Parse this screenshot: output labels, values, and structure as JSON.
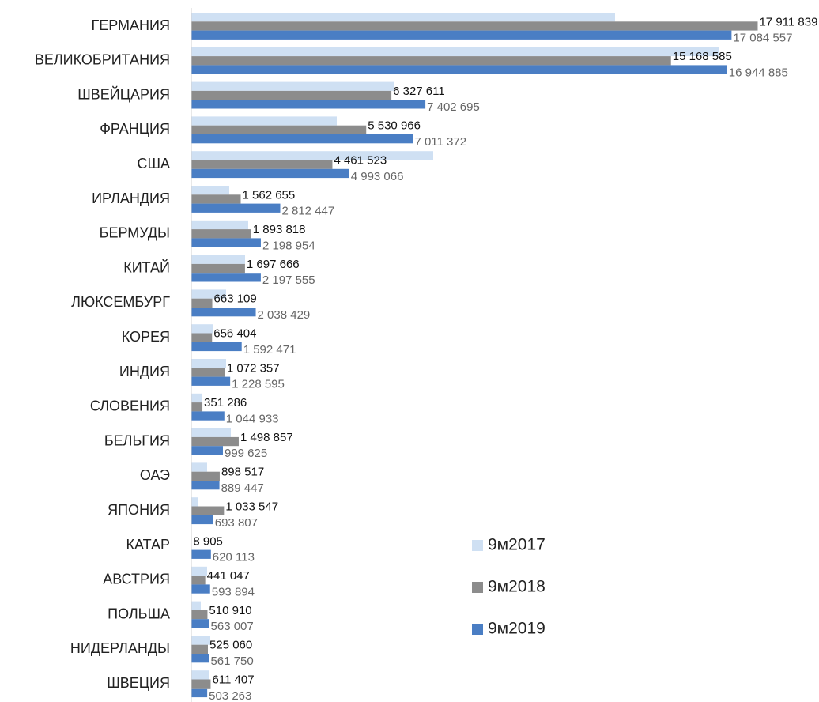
{
  "chart_data": {
    "type": "hbar",
    "categories": [
      "ГЕРМАНИЯ",
      "ВЕЛИКОБРИТАНИЯ",
      "ШВЕЙЦАРИЯ",
      "ФРАНЦИЯ",
      "США",
      "ИРЛАНДИЯ",
      "БЕРМУДЫ",
      "КИТАЙ",
      "ЛЮКСЕМБУРГ",
      "КОРЕЯ",
      "ИНДИЯ",
      "СЛОВЕНИЯ",
      "БЕЛЬГИЯ",
      "ОАЭ",
      "ЯПОНИЯ",
      "КАТАР",
      "АВСТРИЯ",
      "ПОЛЬША",
      "НИДЕРЛАНДЫ",
      "ШВЕЦИЯ"
    ],
    "xlim": [
      0,
      18000000
    ],
    "series": [
      {
        "name": "9м2017",
        "color": "#cfe0f3",
        "values": [
          13400000,
          16700000,
          6400000,
          4600000,
          7650000,
          1200000,
          1800000,
          1700000,
          1100000,
          700000,
          1100000,
          350000,
          1250000,
          500000,
          200000,
          0,
          500000,
          300000,
          600000,
          570000
        ]
      },
      {
        "name": "9м2018",
        "color": "#8c8c8c",
        "values": [
          17911839,
          15168585,
          6327611,
          5530966,
          4461523,
          1562655,
          1893818,
          1697666,
          663109,
          656404,
          1072357,
          351286,
          1498857,
          898517,
          1033547,
          8905,
          441047,
          510910,
          525060,
          611407
        ],
        "value_labels": [
          "17 911 839",
          "15 168 585",
          "6 327 611",
          "5 530 966",
          "4 461 523",
          "1 562 655",
          "1 893 818",
          "1 697 666",
          "663 109",
          "656 404",
          "1 072 357",
          "351 286",
          "1 498 857",
          "898 517",
          "1 033 547",
          "8 905",
          "441 047",
          "510 910",
          "525 060",
          "611 407"
        ]
      },
      {
        "name": "9м2019",
        "color": "#4a7ec4",
        "values": [
          17084557,
          16944885,
          7402695,
          7011372,
          4993066,
          2812447,
          2198954,
          2197555,
          2038429,
          1592471,
          1228595,
          1044933,
          999625,
          889447,
          693807,
          620113,
          593894,
          563007,
          561750,
          503263
        ],
        "value_labels": [
          "17 084 557",
          "16 944 885",
          "7 402 695",
          "7 011 372",
          "4 993 066",
          "2 812 447",
          "2 198 954",
          "2 197 555",
          "2 038 429",
          "1 592 471",
          "1 228 595",
          "1 044 933",
          "999 625",
          "889 447",
          "693 807",
          "620 113",
          "593 894",
          "563 007",
          "561 750",
          "503 263"
        ]
      }
    ]
  }
}
